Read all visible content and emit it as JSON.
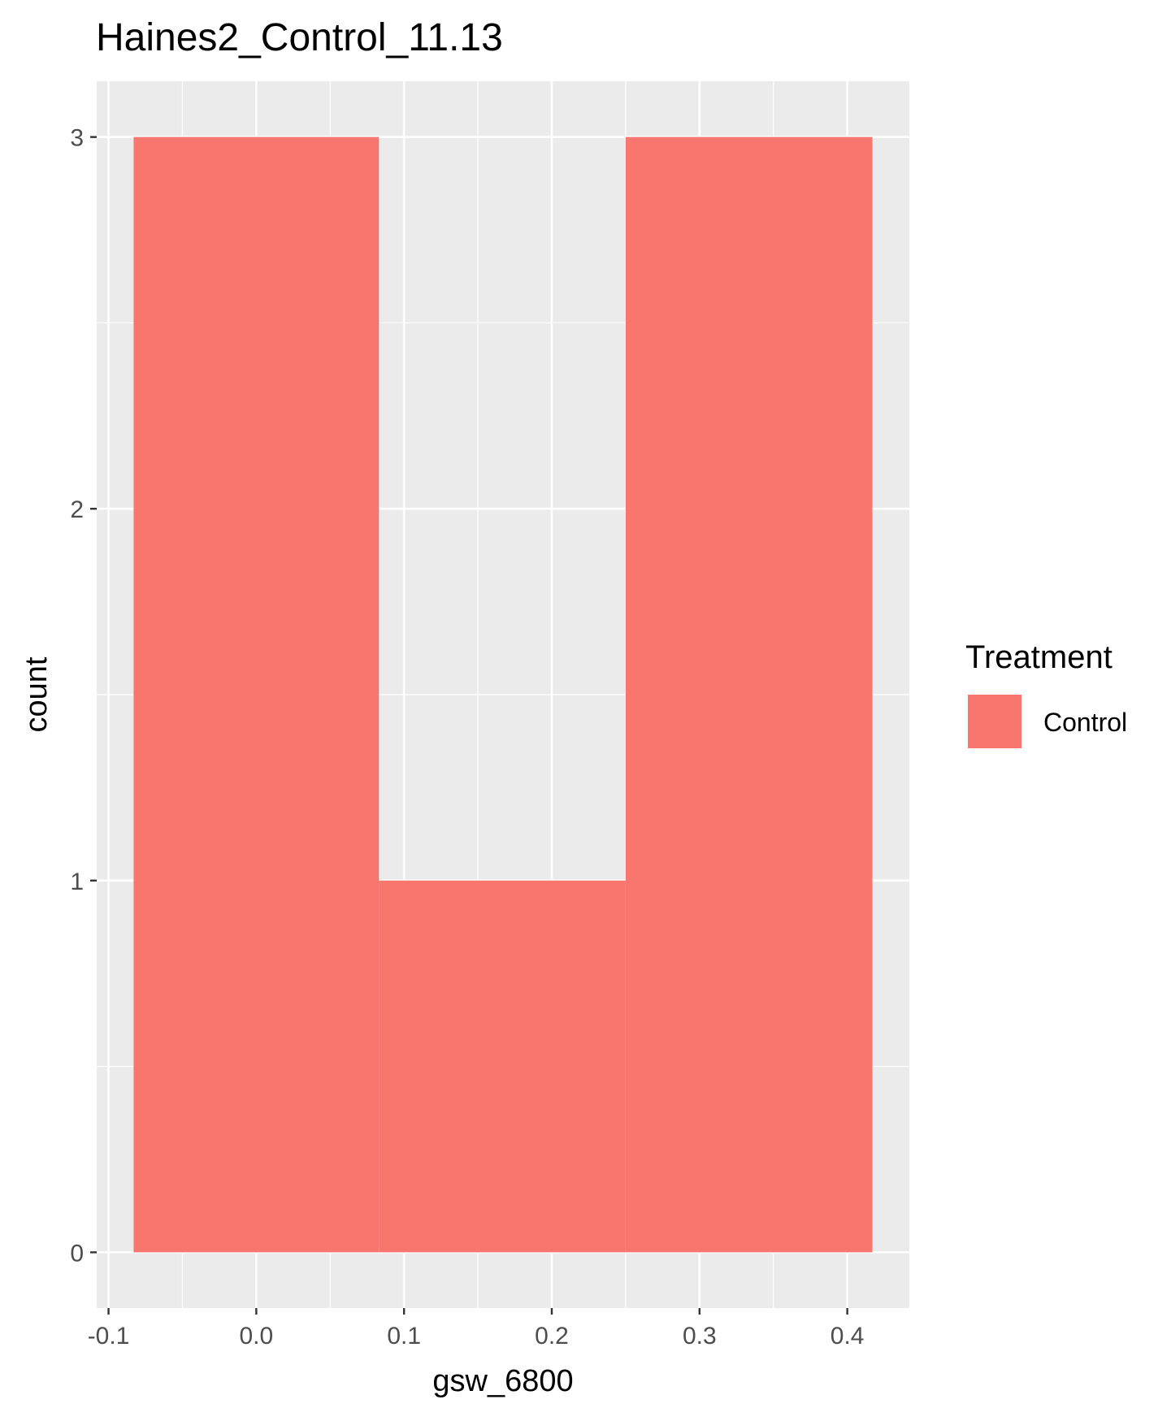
{
  "chart_data": {
    "type": "bar",
    "title": "Haines2_Control_11.13",
    "xlabel": "gsw_6800",
    "ylabel": "count",
    "bins": [
      {
        "x_start": -0.083,
        "x_end": 0.083,
        "count": 3
      },
      {
        "x_start": 0.083,
        "x_end": 0.25,
        "count": 1
      },
      {
        "x_start": 0.25,
        "x_end": 0.417,
        "count": 3
      }
    ],
    "xlim": [
      -0.108,
      0.442
    ],
    "ylim": [
      -0.15,
      3.15
    ],
    "x_ticks": [
      -0.1,
      0.0,
      0.1,
      0.2,
      0.3,
      0.4
    ],
    "x_tick_labels": [
      "-0.1",
      "0.0",
      "0.1",
      "0.2",
      "0.3",
      "0.4"
    ],
    "y_ticks": [
      0,
      1,
      2,
      3
    ],
    "y_tick_labels": [
      "0",
      "1",
      "2",
      "3"
    ],
    "grid": true,
    "legend": {
      "title": "Treatment",
      "position": "right",
      "entries": [
        {
          "label": "Control",
          "color": "#f8766d"
        }
      ]
    },
    "colors": {
      "bar_fill": "#f8766d",
      "panel_background": "#ebebeb",
      "grid_line": "#ffffff"
    }
  }
}
